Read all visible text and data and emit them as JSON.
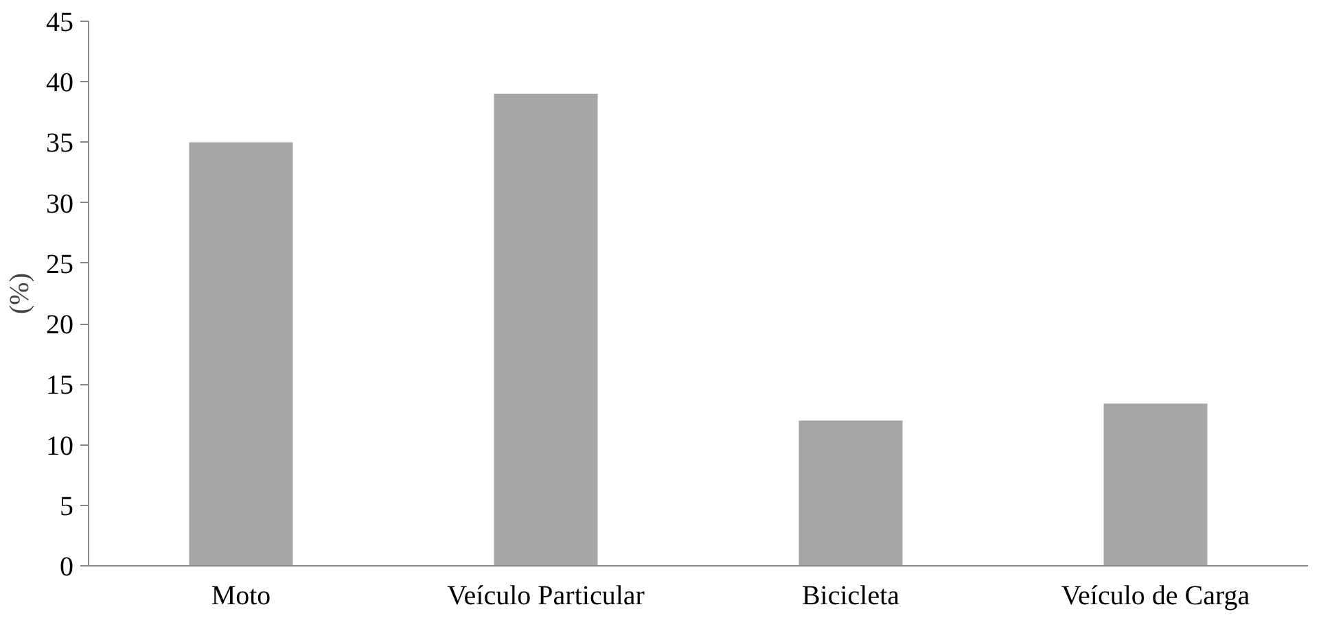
{
  "chart_data": {
    "type": "bar",
    "ylabel": "(%)",
    "categories": [
      "Moto",
      "Veículo Particular",
      "Bicicleta",
      "Veículo de Carga"
    ],
    "values": [
      35,
      39,
      12,
      13.4
    ],
    "color": "#a6a6a6",
    "ylim": [
      0,
      45
    ],
    "yticks": [
      0,
      5,
      10,
      15,
      20,
      25,
      30,
      35,
      40,
      45
    ],
    "grid": false
  }
}
